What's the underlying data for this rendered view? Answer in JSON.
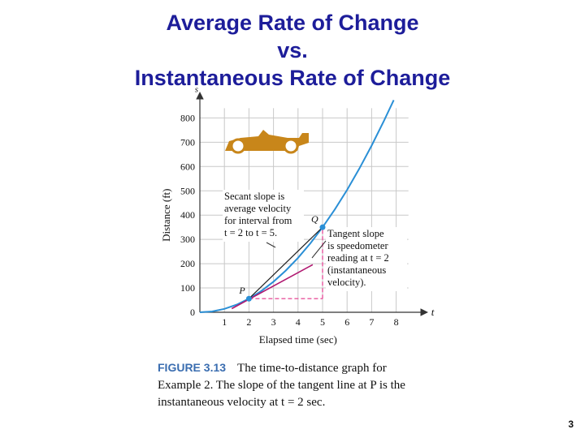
{
  "slide": {
    "title_lines": [
      "Average Rate of Change",
      "vs.",
      "Instantaneous Rate of Change"
    ],
    "page_number": "3"
  },
  "caption": {
    "label": "FIGURE 3.13",
    "lines": [
      "The time-to-distance graph for",
      "Example 2. The slope of the tangent line at P is the",
      "instantaneous velocity at t = 2 sec."
    ]
  },
  "chart_data": {
    "type": "line",
    "xlabel": "Elapsed time (sec)",
    "ylabel": "Distance (ft)",
    "x_axis_symbol": "t",
    "y_axis_symbol": "s",
    "xlim": [
      0,
      8.5
    ],
    "ylim": [
      0,
      800
    ],
    "x_ticks": [
      1,
      2,
      3,
      4,
      5,
      6,
      7,
      8
    ],
    "y_ticks": [
      0,
      100,
      200,
      300,
      400,
      500,
      600,
      700,
      800
    ],
    "grid": true,
    "series": [
      {
        "color": "#2a8fd6",
        "x": [
          0,
          0.5,
          1,
          1.5,
          2,
          2.5,
          3,
          3.5,
          4,
          4.5,
          5,
          5.5,
          6,
          6.5,
          7,
          7.5,
          7.9
        ],
        "y": [
          0,
          3.5,
          14,
          31.5,
          56,
          87.5,
          126,
          171.5,
          224,
          283.5,
          350,
          423.5,
          504,
          591.5,
          686,
          787.5,
          873.6
        ]
      }
    ],
    "secant": {
      "color": "#222222",
      "x": [
        2,
        5
      ],
      "y": [
        56,
        350
      ]
    },
    "tangent": {
      "color": "#b01870",
      "x": [
        1.3,
        4.6
      ],
      "y": [
        15,
        196
      ]
    },
    "guides": {
      "color": "#e8559e",
      "x": [
        2,
        5
      ],
      "y": [
        56,
        350
      ]
    },
    "points": [
      {
        "label": "P",
        "x": 2,
        "y": 56,
        "color": "#2a8fd6"
      },
      {
        "label": "Q",
        "x": 5,
        "y": 350,
        "color": "#2a8fd6"
      }
    ],
    "annotations": [
      {
        "lines": [
          "Secant slope is",
          "average velocity",
          "for interval from",
          "t = 2 to t = 5."
        ]
      },
      {
        "lines": [
          "Tangent slope",
          "is speedometer",
          "reading at t = 2",
          "(instantaneous",
          "velocity)."
        ]
      }
    ],
    "car_color": "#c8861a"
  }
}
